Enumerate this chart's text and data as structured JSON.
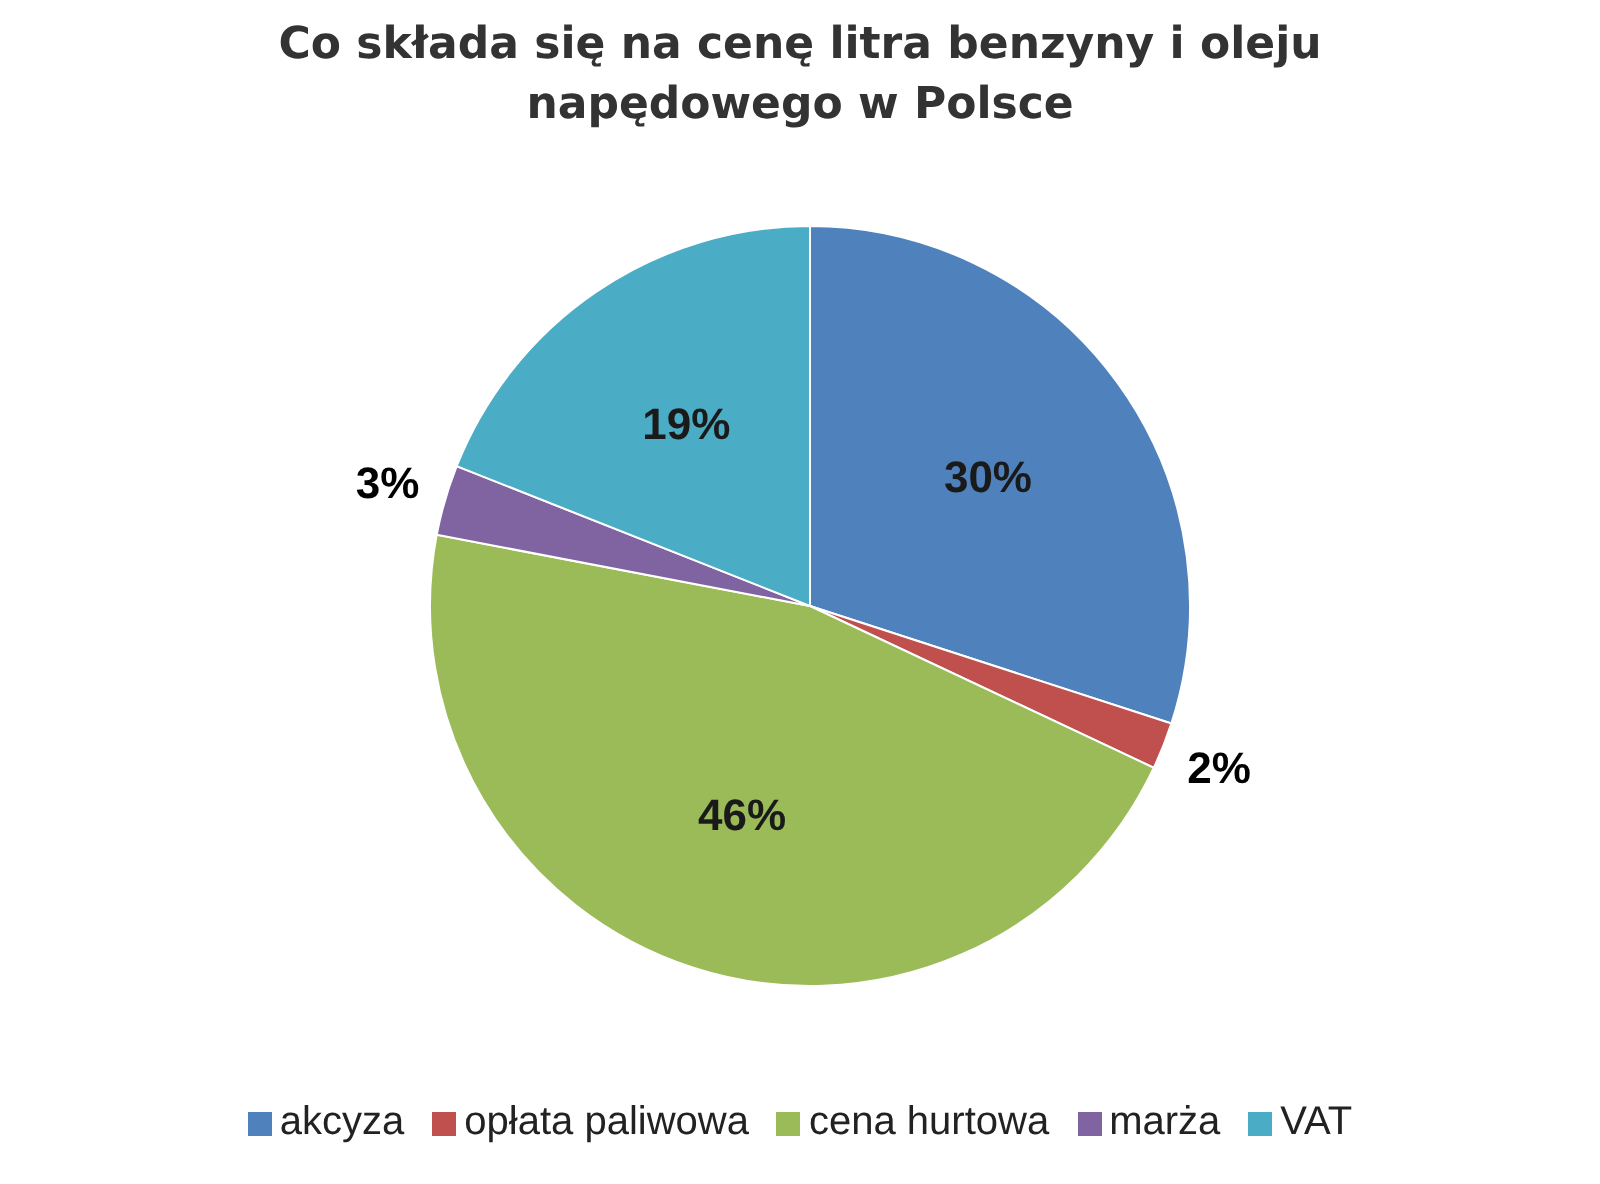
{
  "chart_data": {
    "type": "pie",
    "title": "Co składa się na cenę litra benzyny i oleju napędowego w Polsce",
    "categories": [
      "akcyza",
      "opłata paliwowa",
      "cena hurtowa",
      "marża",
      "VAT"
    ],
    "values": [
      30,
      2,
      46,
      3,
      19
    ],
    "colors": [
      "#4f81bd",
      "#c0504d",
      "#9bbb59",
      "#8064a2",
      "#4bacc6"
    ],
    "value_labels": [
      "30%",
      "2%",
      "46%",
      "3%",
      "19%"
    ],
    "legend": "bottom"
  }
}
